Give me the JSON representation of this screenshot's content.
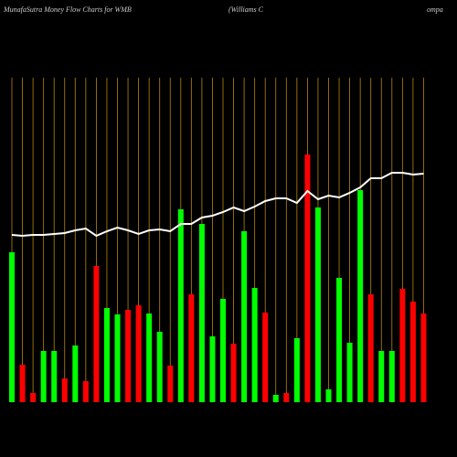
{
  "chart_data": {
    "type": "bar-line",
    "title": "MunafaSutra  Money Flow  Charts for WMB",
    "subtitle": "(Williams C",
    "subtitle_tail": "ompa",
    "categories": [
      null,
      null,
      null,
      null,
      null,
      null,
      null,
      null,
      null,
      null,
      null,
      null,
      null,
      null,
      null,
      null,
      null,
      null,
      null,
      null,
      null,
      null,
      null,
      null,
      null,
      null,
      null,
      null,
      null,
      null,
      null,
      null,
      null,
      null,
      null,
      null,
      null,
      null,
      null,
      null
    ],
    "series": [
      {
        "values": [
          164,
          41,
          10,
          56,
          56,
          26,
          62,
          23,
          149,
          103,
          96,
          101,
          106,
          97,
          77,
          40,
          211,
          118,
          195,
          72,
          113,
          64,
          187,
          125,
          98,
          8,
          10,
          70,
          271,
          213,
          14,
          136,
          65,
          232,
          118,
          56,
          56,
          124,
          110,
          97
        ],
        "colors": [
          "#00ff00",
          "#ff0000",
          "#ff0000",
          "#00ff00",
          "#00ff00",
          "#ff0000",
          "#00ff00",
          "#ff0000",
          "#ff0000",
          "#00ff00",
          "#00ff00",
          "#ff0000",
          "#ff0000",
          "#00ff00",
          "#00ff00",
          "#ff0000",
          "#00ff00",
          "#ff0000",
          "#00ff00",
          "#00ff00",
          "#00ff00",
          "#ff0000",
          "#00ff00",
          "#00ff00",
          "#ff0000",
          "#00ff00",
          "#ff0000",
          "#00ff00",
          "#ff0000",
          "#00ff00",
          "#00ff00",
          "#00ff00",
          "#00ff00",
          "#00ff00",
          "#ff0000",
          "#00ff00",
          "#00ff00",
          "#ff0000",
          "#ff0000",
          "#ff0000"
        ]
      },
      {
        "type": "line",
        "color": "#ffffff",
        "values": [
          183,
          182,
          183,
          183,
          184,
          185,
          188,
          190,
          182,
          187,
          191,
          188,
          184,
          188,
          189,
          187,
          195,
          195,
          202,
          204,
          208,
          213,
          209,
          214,
          220,
          223,
          223,
          218,
          231,
          222,
          226,
          224,
          229,
          235,
          245,
          245,
          251,
          251,
          249,
          250
        ]
      }
    ],
    "ylim": [
      0,
      380
    ],
    "line_color_grid": "#b8860b"
  }
}
